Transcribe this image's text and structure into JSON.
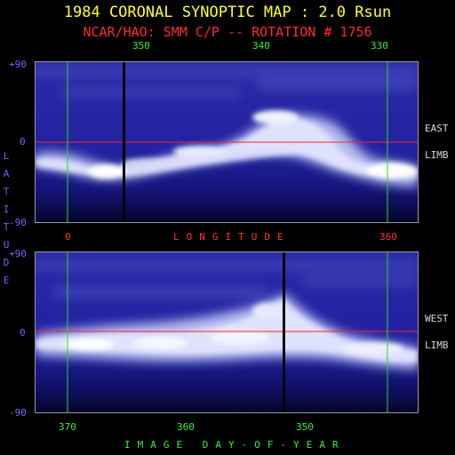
{
  "header": {
    "title": "1984 CORONAL SYNOPTIC MAP : 2.0 Rsun",
    "subtitle": "NCAR/HAO: SMM C/P -- ROTATION # 1756"
  },
  "top_panel": {
    "longitude_ticks": [
      "350",
      "340",
      "330"
    ],
    "lat_ticks": [
      "+90",
      "0",
      "-90"
    ],
    "side_label_1": "EAST",
    "side_label_2": "LIMB"
  },
  "longitude_axis": {
    "left_value": "0",
    "title": "LONGITUDE",
    "right_value": "360"
  },
  "latitude_axis": {
    "title_letters": [
      "L",
      "A",
      "T",
      "I",
      "T",
      "U",
      "D",
      "E"
    ]
  },
  "bottom_panel": {
    "lat_ticks": [
      "+90",
      "0",
      "-90"
    ],
    "day_ticks": [
      "370",
      "360",
      "350"
    ],
    "side_label_1": "WEST",
    "side_label_2": "LIMB",
    "xlabel": "IMAGE DAY-OF-YEAR"
  },
  "colors": {
    "title": "#ffff33",
    "subtitle": "#ff2a2a",
    "map_background": "#1e1e9a",
    "corona_bright": "#f4f6ff",
    "equator_line": "#ff2020",
    "marker_lines": "#22dd22",
    "data_gap": "#000000"
  }
}
